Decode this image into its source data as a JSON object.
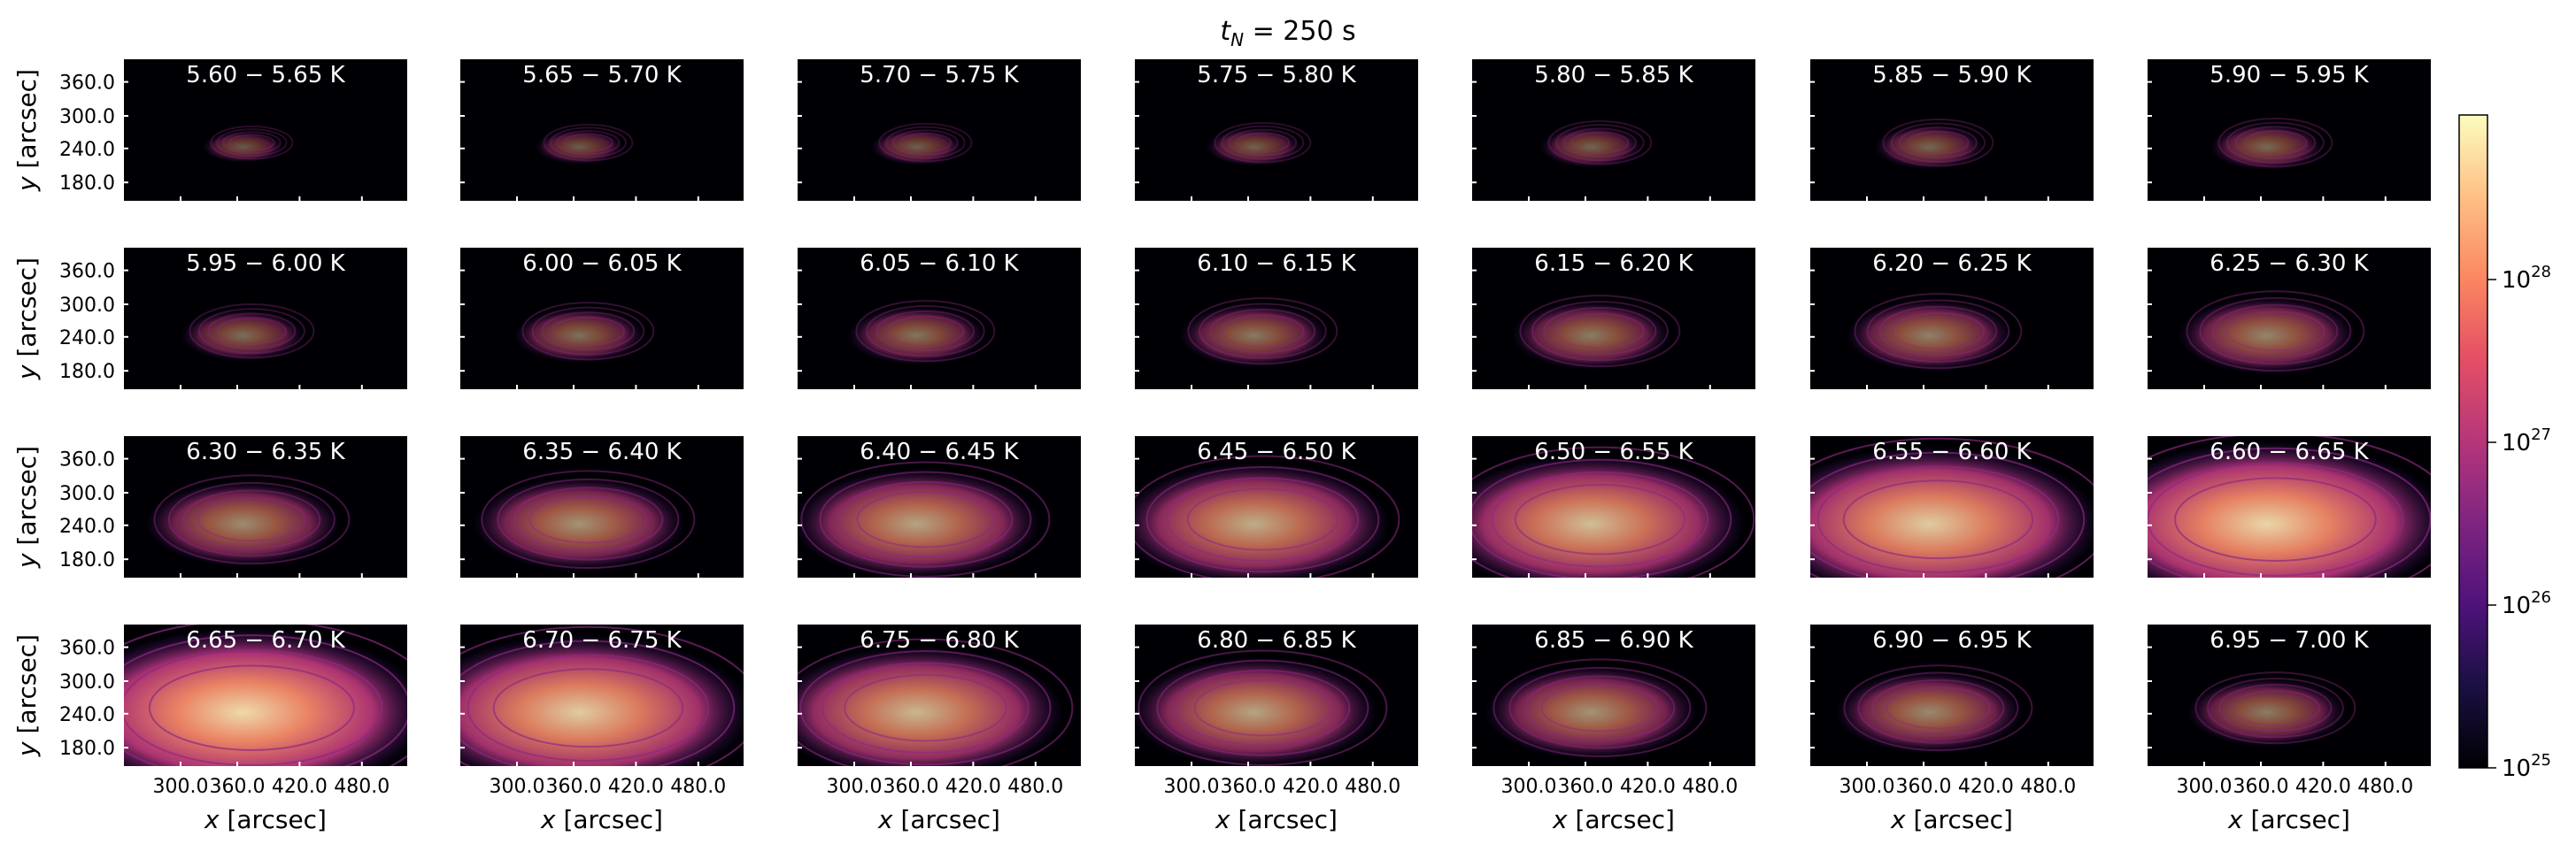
{
  "figure": {
    "title_var": "t",
    "title_sub": "N",
    "title_rest": " = 250 s"
  },
  "axes": {
    "xlabel_var": "x",
    "xlabel_unit": " [arcsec]",
    "ylabel_var": "y",
    "ylabel_unit": " [arcsec]",
    "xticks": [
      "300.0",
      "360.0",
      "420.0",
      "480.0"
    ],
    "yticks": [
      "360.0",
      "300.0",
      "240.0",
      "180.0"
    ]
  },
  "colorbar": {
    "scale": "log",
    "colormap": "magma",
    "ticks": [
      "10",
      "10",
      "10",
      "10"
    ],
    "tick_exponents": [
      "28",
      "27",
      "26",
      "25"
    ]
  },
  "chart_data": {
    "type": "heatmap",
    "grid_rows": 4,
    "grid_cols": 7,
    "x_ticks": [
      300.0,
      360.0,
      420.0,
      480.0
    ],
    "y_ticks": [
      180.0,
      240.0,
      300.0,
      360.0
    ],
    "color_scale": "log",
    "color_range": [
      1e+25,
      1e+28
    ],
    "panels": [
      {
        "label": "5.60 − 5.65 K",
        "t_lo": 5.6,
        "t_hi": 5.65,
        "intensity": 0.08
      },
      {
        "label": "5.65 − 5.70 K",
        "t_lo": 5.65,
        "t_hi": 5.7,
        "intensity": 0.1
      },
      {
        "label": "5.70 − 5.75 K",
        "t_lo": 5.7,
        "t_hi": 5.75,
        "intensity": 0.11
      },
      {
        "label": "5.75 − 5.80 K",
        "t_lo": 5.75,
        "t_hi": 5.8,
        "intensity": 0.12
      },
      {
        "label": "5.80 − 5.85 K",
        "t_lo": 5.8,
        "t_hi": 5.85,
        "intensity": 0.14
      },
      {
        "label": "5.85 − 5.90 K",
        "t_lo": 5.85,
        "t_hi": 5.9,
        "intensity": 0.16
      },
      {
        "label": "5.90 − 5.95 K",
        "t_lo": 5.9,
        "t_hi": 5.95,
        "intensity": 0.17
      },
      {
        "label": "5.95 − 6.00 K",
        "t_lo": 5.95,
        "t_hi": 6.0,
        "intensity": 0.2
      },
      {
        "label": "6.00 − 6.05 K",
        "t_lo": 6.0,
        "t_hi": 6.05,
        "intensity": 0.22
      },
      {
        "label": "6.05 − 6.10 K",
        "t_lo": 6.05,
        "t_hi": 6.1,
        "intensity": 0.24
      },
      {
        "label": "6.10 − 6.15 K",
        "t_lo": 6.1,
        "t_hi": 6.15,
        "intensity": 0.27
      },
      {
        "label": "6.15 − 6.20 K",
        "t_lo": 6.15,
        "t_hi": 6.2,
        "intensity": 0.3
      },
      {
        "label": "6.20 − 6.25 K",
        "t_lo": 6.2,
        "t_hi": 6.25,
        "intensity": 0.32
      },
      {
        "label": "6.25 − 6.30 K",
        "t_lo": 6.25,
        "t_hi": 6.3,
        "intensity": 0.35
      },
      {
        "label": "6.30 − 6.35 K",
        "t_lo": 6.3,
        "t_hi": 6.35,
        "intensity": 0.4
      },
      {
        "label": "6.35 − 6.40 K",
        "t_lo": 6.35,
        "t_hi": 6.4,
        "intensity": 0.45
      },
      {
        "label": "6.40 − 6.45 K",
        "t_lo": 6.4,
        "t_hi": 6.45,
        "intensity": 0.55
      },
      {
        "label": "6.45 − 6.50 K",
        "t_lo": 6.45,
        "t_hi": 6.5,
        "intensity": 0.62
      },
      {
        "label": "6.50 − 6.55 K",
        "t_lo": 6.5,
        "t_hi": 6.55,
        "intensity": 0.72
      },
      {
        "label": "6.55 − 6.60 K",
        "t_lo": 6.55,
        "t_hi": 6.6,
        "intensity": 0.82
      },
      {
        "label": "6.60 − 6.65 K",
        "t_lo": 6.6,
        "t_hi": 6.65,
        "intensity": 0.88
      },
      {
        "label": "6.65 − 6.70 K",
        "t_lo": 6.65,
        "t_hi": 6.7,
        "intensity": 0.9
      },
      {
        "label": "6.70 − 6.75 K",
        "t_lo": 6.7,
        "t_hi": 6.75,
        "intensity": 0.82
      },
      {
        "label": "6.75 − 6.80 K",
        "t_lo": 6.75,
        "t_hi": 6.8,
        "intensity": 0.68
      },
      {
        "label": "6.80 − 6.85 K",
        "t_lo": 6.8,
        "t_hi": 6.85,
        "intensity": 0.55
      },
      {
        "label": "6.85 − 6.90 K",
        "t_lo": 6.85,
        "t_hi": 6.9,
        "intensity": 0.45
      },
      {
        "label": "6.90 − 6.95 K",
        "t_lo": 6.9,
        "t_hi": 6.95,
        "intensity": 0.38
      },
      {
        "label": "6.95 − 7.00 K",
        "t_lo": 6.95,
        "t_hi": 7.0,
        "intensity": 0.3
      }
    ]
  }
}
